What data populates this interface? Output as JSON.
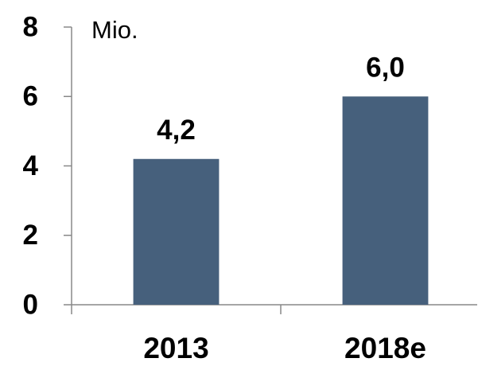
{
  "chart_data": {
    "type": "bar",
    "y_label": "Mio.",
    "categories": [
      "2013",
      "2018e"
    ],
    "values": [
      4.2,
      6.0
    ],
    "value_labels": [
      "4,2",
      "6,0"
    ],
    "color": "#46607c",
    "ylim": [
      0,
      8
    ],
    "yticks": [
      0,
      2,
      4,
      6,
      8
    ],
    "grid": false
  }
}
